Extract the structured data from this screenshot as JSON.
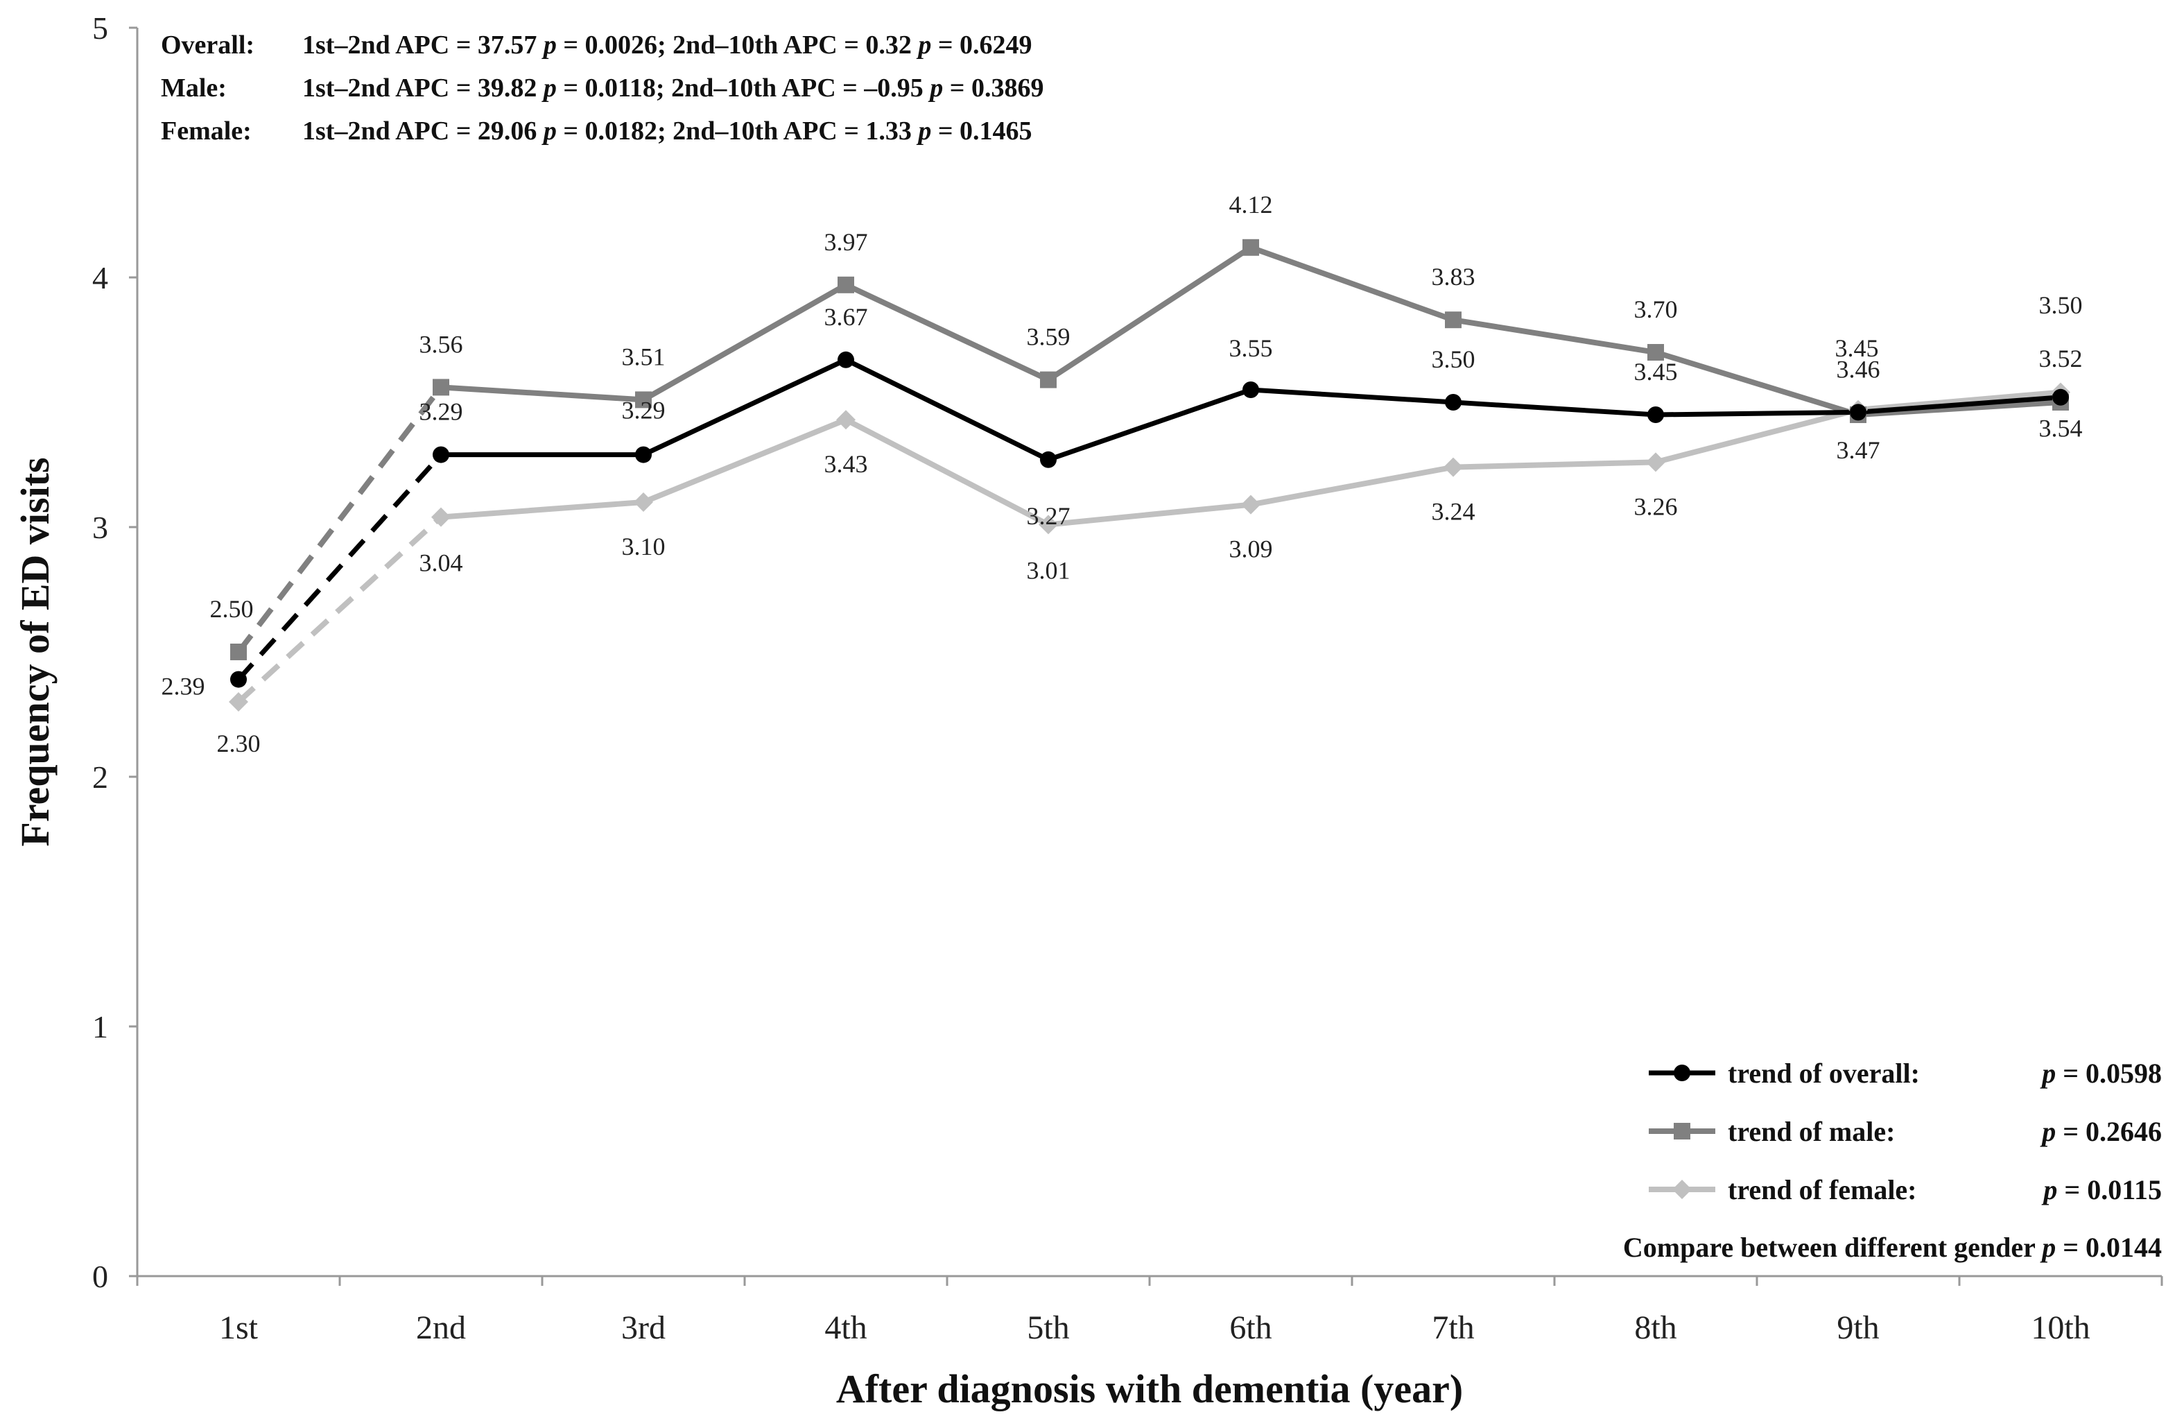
{
  "chart_data": {
    "type": "line",
    "xlabel": "After diagnosis with dementia (year)",
    "ylabel": "Frequency of ED visits",
    "ylim": [
      0,
      5
    ],
    "yticks": [
      "0",
      "1",
      "2",
      "3",
      "4",
      "5"
    ],
    "categories": [
      "1st",
      "2nd",
      "3rd",
      "4th",
      "5th",
      "6th",
      "7th",
      "8th",
      "9th",
      "10th"
    ],
    "series": [
      {
        "key": "overall",
        "name": "trend of overall:",
        "p": "= 0.0598",
        "color": "#000000",
        "marker": "circle",
        "values": [
          2.39,
          3.29,
          3.29,
          3.67,
          3.27,
          3.55,
          3.5,
          3.45,
          3.46,
          3.52
        ],
        "labels": [
          "2.39",
          "3.29",
          "3.29",
          "3.67",
          "3.27",
          "3.55",
          "3.50",
          "3.45",
          "3.46",
          "3.52"
        ]
      },
      {
        "key": "male",
        "name": "trend of male:",
        "p": "= 0.2646",
        "color": "#808080",
        "marker": "square",
        "values": [
          2.5,
          3.56,
          3.51,
          3.97,
          3.59,
          4.12,
          3.83,
          3.7,
          3.45,
          3.5
        ],
        "labels": [
          "2.50",
          "3.56",
          "3.51",
          "3.97",
          "3.59",
          "4.12",
          "3.83",
          "3.70",
          "3.45",
          "3.50"
        ]
      },
      {
        "key": "female",
        "name": "trend of female:",
        "p": "= 0.0115",
        "color": "#c0c0c0",
        "marker": "diamond",
        "values": [
          2.3,
          3.04,
          3.1,
          3.43,
          3.01,
          3.09,
          3.24,
          3.26,
          3.47,
          3.54
        ],
        "labels": [
          "2.30",
          "3.04",
          "3.10",
          "3.43",
          "3.01",
          "3.09",
          "3.24",
          "3.26",
          "3.47",
          "3.54"
        ]
      }
    ],
    "annotations": [
      {
        "group": "Overall:",
        "seg1": "1st–2nd  APC = 37.57",
        "p1": "= 0.0026; 2nd–10th  APC = 0.32",
        "p2": "= 0.6249"
      },
      {
        "group": "Male:",
        "seg1": "1st–2nd  APC = 39.82",
        "p1": "= 0.0118; 2nd–10th  APC = –0.95",
        "p2": "= 0.3869"
      },
      {
        "group": "Female:",
        "seg1": "1st–2nd  APC = 29.06",
        "p1": "= 0.0182; 2nd–10th  APC = 1.33",
        "p2": "= 0.1465"
      }
    ],
    "p_symbol": "p",
    "compare_text": "Compare between different gender",
    "compare_p": "= 0.0144"
  }
}
